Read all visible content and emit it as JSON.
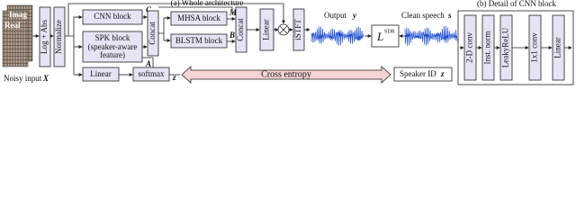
{
  "title_a": "(a) Whole architecture",
  "title_b": "(b) Detail of CNN block",
  "input": {
    "imag": "Imag",
    "real": "Real",
    "label": "Noisy input",
    "symbol": "X"
  },
  "log_abs": "Log + Abs",
  "normalize": "Normalize",
  "cnn_block": "CNN block",
  "spk_block": "SPK block",
  "spk_note": "(speaker-aware",
  "spk_note2": "feature)",
  "concat1": "Concat",
  "mhsa": "MHSA block",
  "blstm": "BLSTM block",
  "concat2": "Concat",
  "linear1": "Linear",
  "istft": "iSTFT",
  "output": {
    "label": "Output",
    "symbol": "y"
  },
  "loss": {
    "main": "L",
    "sup": "SDR"
  },
  "clean": {
    "label": "Clean speech",
    "symbol": "s"
  },
  "linear2": "Linear",
  "softmax": "softmax",
  "z_hat": "z",
  "cross_entropy": "Cross entropy",
  "speaker_id": {
    "label": "Speaker ID",
    "symbol": "z"
  },
  "vars": {
    "c": "C",
    "m": "M",
    "b": "B",
    "a": "A"
  },
  "cnn_detail": [
    "2-D conv",
    "Inst. norm",
    "LeakyReLU",
    "1x1 conv",
    "Linear"
  ]
}
